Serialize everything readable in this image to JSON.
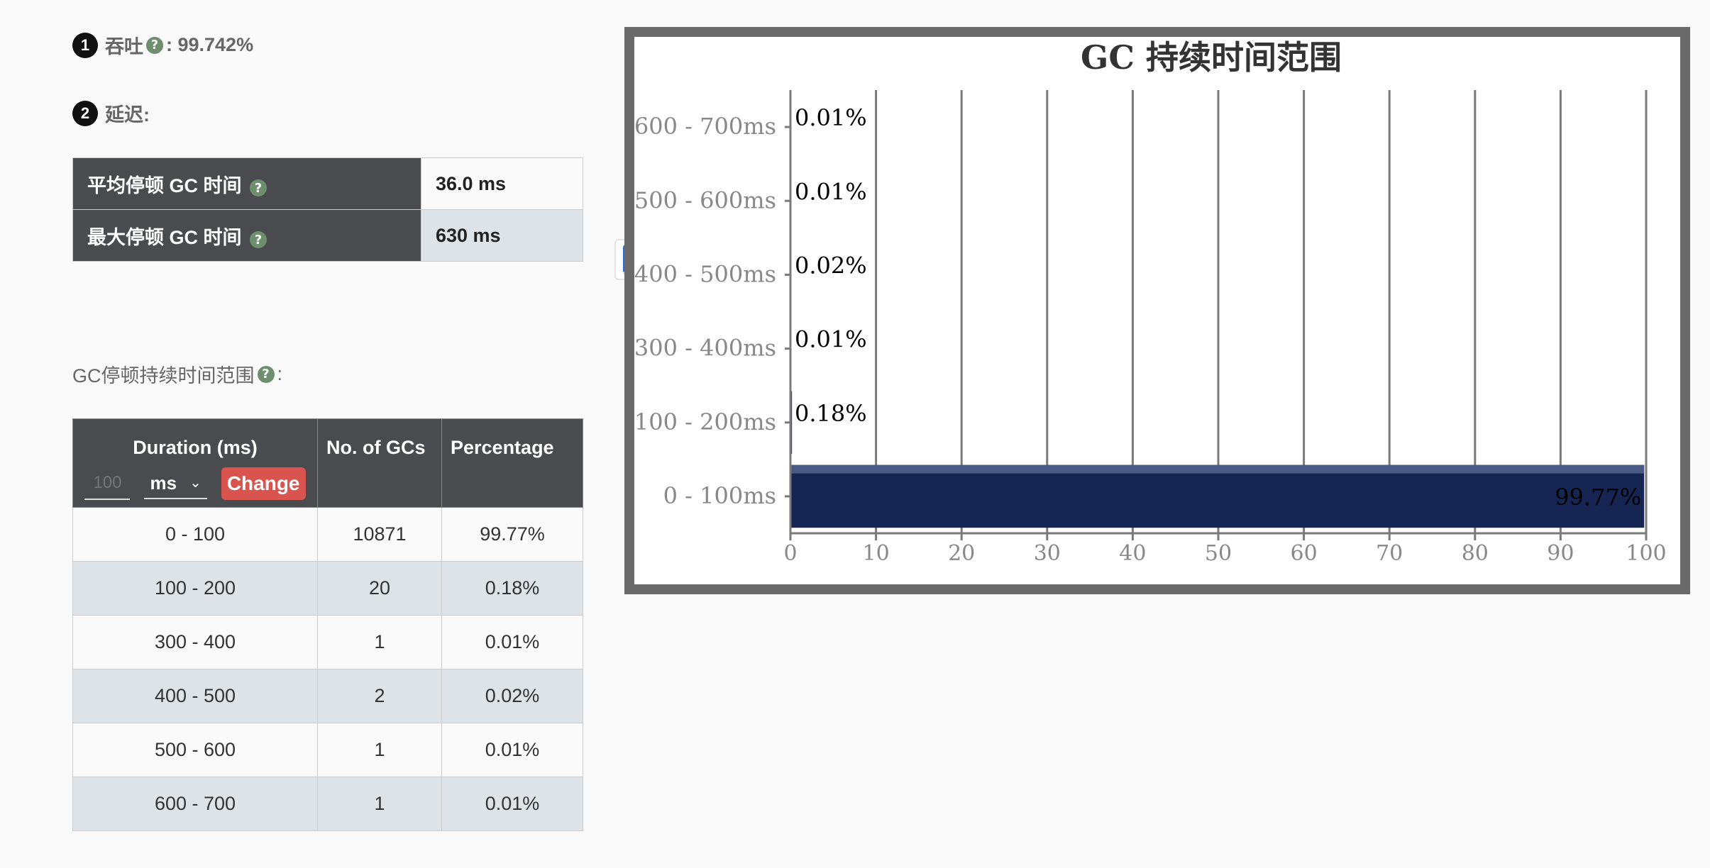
{
  "metrics": {
    "throughput": {
      "badge": "1",
      "label": "吞吐",
      "value": ": 99.742%"
    },
    "latency": {
      "badge": "2",
      "label": "延迟:"
    }
  },
  "latency_table": [
    {
      "label": "平均停顿 GC 时间",
      "value": "36.0 ms"
    },
    {
      "label": "最大停顿 GC 时间",
      "value": "630 ms"
    }
  ],
  "duration_section": {
    "label": "GC停顿持续时间范围",
    "suffix": ":"
  },
  "duration_table": {
    "headers": {
      "duration": "Duration (ms)",
      "count": "No. of GCs",
      "percentage": "Percentage"
    },
    "unit_input_placeholder": "100",
    "unit_select_value": "ms",
    "change_label": "Change",
    "rows": [
      {
        "range": "0 - 100",
        "count": "10871",
        "pct": "99.77%"
      },
      {
        "range": "100 - 200",
        "count": "20",
        "pct": "0.18%"
      },
      {
        "range": "300 - 400",
        "count": "1",
        "pct": "0.01%"
      },
      {
        "range": "400 - 500",
        "count": "2",
        "pct": "0.02%"
      },
      {
        "range": "500 - 600",
        "count": "1",
        "pct": "0.01%"
      },
      {
        "range": "600 - 700",
        "count": "1",
        "pct": "0.01%"
      }
    ]
  },
  "colors": {
    "bar": "#172553",
    "help_icon": "#6e8f6e",
    "change_button": "#d9534f",
    "header_bg": "#4a4b4f"
  },
  "chart_data": {
    "type": "bar",
    "orientation": "horizontal",
    "title": "GC 持续时间范围",
    "categories": [
      "0 - 100ms",
      "100 - 200ms",
      "300 - 400ms",
      "400 - 500ms",
      "500 - 600ms",
      "600 - 700ms"
    ],
    "values": [
      99.77,
      0.18,
      0.01,
      0.02,
      0.01,
      0.01
    ],
    "data_labels": [
      "99.77%",
      "0.18%",
      "0.01%",
      "0.02%",
      "0.01%",
      "0.01%"
    ],
    "xlim": [
      0,
      100
    ],
    "xticks": [
      0,
      10,
      20,
      30,
      40,
      50,
      60,
      70,
      80,
      90,
      100
    ],
    "grid": true,
    "legend": "none"
  }
}
